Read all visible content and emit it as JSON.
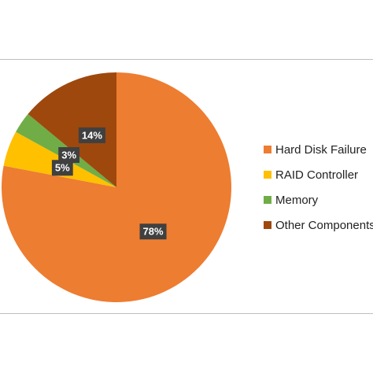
{
  "chart_data": {
    "type": "pie",
    "categories": [
      "Hard Disk Failure",
      "RAID Controller",
      "Memory",
      "Other Components"
    ],
    "values": [
      78,
      5,
      3,
      14
    ],
    "value_labels": [
      "78%",
      "5%",
      "3%",
      "14%"
    ],
    "colors": [
      "#ed7d31",
      "#ffc000",
      "#70ad47",
      "#9e480e"
    ],
    "legend": "right"
  }
}
